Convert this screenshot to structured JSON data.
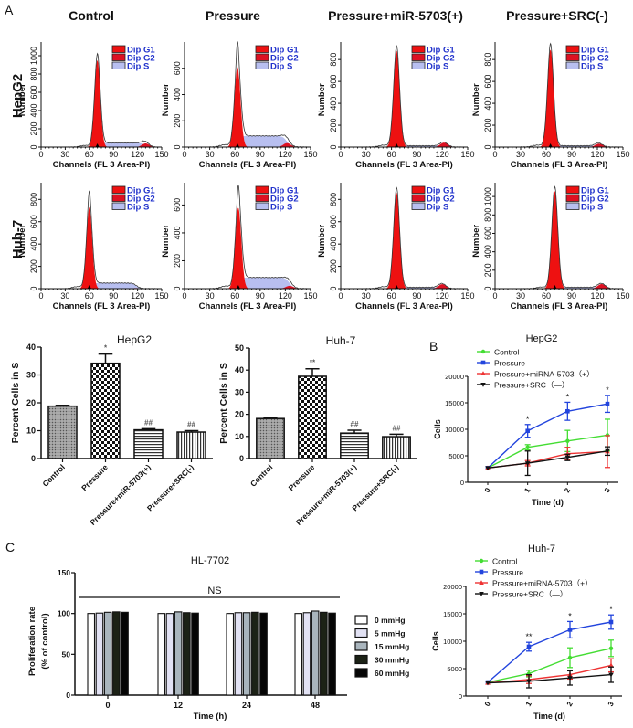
{
  "figure": {
    "panel_labels": [
      "A",
      "B",
      "C"
    ],
    "column_titles": [
      "Control",
      "Pressure",
      "Pressure+miR-5703(+)",
      "Pressure+SRC(-)"
    ],
    "row_labels": [
      "HepG2",
      "Huh-7"
    ]
  },
  "colors": {
    "g1": "#ee1111",
    "g2": "#dd1122",
    "s_phase": "#b8bff0",
    "legend_text": "#2233cc",
    "control": "#44dd33",
    "pressure": "#2244dd",
    "mirna": "#ee3333",
    "src": "#111111"
  },
  "chart_data": [
    {
      "type": "area",
      "row": "HepG2",
      "condition": "Control",
      "xlabel": "Channels (FL 3 Area-PI)",
      "ylabel": "Number",
      "xlim": [
        0,
        150
      ],
      "xticks": [
        0,
        30,
        60,
        90,
        120,
        150
      ],
      "ylim": [
        0,
        1150
      ],
      "yticks": [
        0,
        200,
        400,
        600,
        800,
        1000
      ],
      "legend": [
        "Dip G1",
        "Dip G2",
        "Dip S"
      ],
      "g1_channel": 70,
      "g1_height": 950,
      "peak_height": 1000,
      "g2_channel": 130,
      "g2_height": 40,
      "s_level": 45
    },
    {
      "type": "area",
      "row": "HepG2",
      "condition": "Pressure",
      "xlabel": "Channels (FL 3 Area-PI)",
      "ylabel": "Number",
      "xlim": [
        0,
        150
      ],
      "xticks": [
        0,
        30,
        60,
        90,
        120,
        150
      ],
      "ylim": [
        0,
        800
      ],
      "yticks": [
        0,
        200,
        400,
        600
      ],
      "legend": [
        "Dip G1",
        "Dip G2",
        "Dip S"
      ],
      "g1_channel": 63,
      "g1_height": 610,
      "peak_height": 760,
      "g2_channel": 122,
      "g2_height": 30,
      "s_level": 85
    },
    {
      "type": "area",
      "row": "HepG2",
      "condition": "Pressure+miR-5703(+)",
      "xlabel": "Channels (FL 3 Area-PI)",
      "ylabel": "Number",
      "xlim": [
        0,
        150
      ],
      "xticks": [
        0,
        30,
        60,
        90,
        120,
        150
      ],
      "ylim": [
        0,
        960
      ],
      "yticks": [
        0,
        200,
        400,
        600,
        800
      ],
      "legend": [
        "Dip G1",
        "Dip G2",
        "Dip S"
      ],
      "g1_channel": 66,
      "g1_height": 880,
      "peak_height": 920,
      "g2_channel": 122,
      "g2_height": 40,
      "s_level": 12
    },
    {
      "type": "area",
      "row": "HepG2",
      "condition": "Pressure+SRC(-)",
      "xlabel": "Channels (FL 3 Area-PI)",
      "ylabel": "Number",
      "xlim": [
        0,
        150
      ],
      "xticks": [
        0,
        30,
        60,
        90,
        120,
        150
      ],
      "ylim": [
        0,
        960
      ],
      "yticks": [
        0,
        200,
        400,
        600,
        800
      ],
      "legend": [
        "Dip G1",
        "Dip G2",
        "Dip S"
      ],
      "g1_channel": 65,
      "g1_height": 890,
      "peak_height": 940,
      "g2_channel": 122,
      "g2_height": 30,
      "s_level": 12
    },
    {
      "type": "area",
      "row": "Huh-7",
      "condition": "Control",
      "xlabel": "Channels (FL 3 Area-PI)",
      "ylabel": "Number",
      "xlim": [
        0,
        150
      ],
      "xticks": [
        0,
        30,
        60,
        90,
        120,
        150
      ],
      "ylim": [
        0,
        950
      ],
      "yticks": [
        0,
        200,
        400,
        600,
        800
      ],
      "legend": [
        "Dip G1",
        "Dip G2",
        "Dip S"
      ],
      "g1_channel": 60,
      "g1_height": 730,
      "peak_height": 850,
      "g2_channel": 118,
      "g2_height": 5,
      "s_level": 50
    },
    {
      "type": "area",
      "row": "Huh-7",
      "condition": "Pressure",
      "xlabel": "Channels (FL 3 Area-PI)",
      "ylabel": "Number",
      "xlim": [
        0,
        150
      ],
      "xticks": [
        0,
        30,
        60,
        90,
        120,
        150
      ],
      "ylim": [
        0,
        760
      ],
      "yticks": [
        0,
        200,
        400,
        600
      ],
      "legend": [
        "Dip G1",
        "Dip G2",
        "Dip S"
      ],
      "g1_channel": 64,
      "g1_height": 580,
      "peak_height": 700,
      "g2_channel": 125,
      "g2_height": 20,
      "s_level": 80
    },
    {
      "type": "area",
      "row": "Huh-7",
      "condition": "Pressure+miR-5703(+)",
      "xlabel": "Channels (FL 3 Area-PI)",
      "ylabel": "Number",
      "xlim": [
        0,
        150
      ],
      "xticks": [
        0,
        30,
        60,
        90,
        120,
        150
      ],
      "ylim": [
        0,
        950
      ],
      "yticks": [
        0,
        200,
        400,
        600,
        800
      ],
      "legend": [
        "Dip G1",
        "Dip G2",
        "Dip S"
      ],
      "g1_channel": 66,
      "g1_height": 860,
      "peak_height": 900,
      "g2_channel": 120,
      "g2_height": 40,
      "s_level": 12
    },
    {
      "type": "area",
      "row": "Huh-7",
      "condition": "Pressure+SRC(-)",
      "xlabel": "Channels (FL 3 Area-PI)",
      "ylabel": "Number",
      "xlim": [
        0,
        150
      ],
      "xticks": [
        0,
        30,
        60,
        90,
        120,
        150
      ],
      "ylim": [
        0,
        1150
      ],
      "yticks": [
        0,
        200,
        400,
        600,
        800,
        1000
      ],
      "legend": [
        "Dip G1",
        "Dip G2",
        "Dip S"
      ],
      "g1_channel": 70,
      "g1_height": 1060,
      "peak_height": 1100,
      "g2_channel": 125,
      "g2_height": 50,
      "s_level": 15
    },
    {
      "type": "bar",
      "title": "HepG2",
      "ylabel": "Percent Cells in S",
      "ylim": [
        0,
        40
      ],
      "yticks": [
        0,
        10,
        20,
        30,
        40
      ],
      "categories": [
        "Control",
        "Pressure",
        "Pressure+miR-5703(+)",
        "Pressure+SRC(-)"
      ],
      "values": [
        18.8,
        34.2,
        10.3,
        9.5
      ],
      "errors": [
        0.3,
        3.3,
        0.4,
        0.5
      ],
      "annotations": [
        "",
        "*",
        "##",
        "##"
      ]
    },
    {
      "type": "bar",
      "title": "Huh-7",
      "ylabel": "Percent Cells in S",
      "ylim": [
        0,
        50
      ],
      "yticks": [
        0,
        10,
        20,
        30,
        40,
        50
      ],
      "categories": [
        "Control",
        "Pressure",
        "Pressure+miR-5703(+)",
        "Pressure+SRC(-)"
      ],
      "values": [
        18.1,
        37.2,
        11.5,
        9.9
      ],
      "errors": [
        0.3,
        3.4,
        1.3,
        1.1
      ],
      "annotations": [
        "",
        "**",
        "##",
        "##"
      ]
    },
    {
      "type": "line",
      "title": "HepG2",
      "xlabel": "Time (d)",
      "ylabel": "Cells",
      "x": [
        0,
        1,
        2,
        3
      ],
      "ylim": [
        0,
        20000
      ],
      "yticks": [
        0,
        5000,
        10000,
        15000,
        20000
      ],
      "legend_position": "top-left",
      "series": [
        {
          "name": "Control",
          "values": [
            2700,
            6600,
            7800,
            8900
          ],
          "errors": [
            0,
            500,
            2000,
            3000
          ]
        },
        {
          "name": "Pressure",
          "values": [
            2700,
            9700,
            13400,
            14800
          ],
          "errors": [
            0,
            1200,
            1700,
            1600
          ]
        },
        {
          "name": "Pressure+miRNA-5703（+）",
          "values": [
            2700,
            3600,
            5400,
            5800
          ],
          "errors": [
            0,
            500,
            1200,
            3000
          ]
        },
        {
          "name": "Pressure+SRC（—）",
          "values": [
            2700,
            3600,
            4700,
            5900
          ],
          "errors": [
            0,
            2300,
            600,
            800
          ]
        }
      ],
      "annotations": [
        "",
        "*",
        "*",
        "*"
      ]
    },
    {
      "type": "line",
      "title": "Huh-7",
      "xlabel": "Time (d)",
      "ylabel": "Cells",
      "x": [
        0,
        1,
        2,
        3
      ],
      "ylim": [
        0,
        20000
      ],
      "yticks": [
        0,
        5000,
        10000,
        15000,
        20000
      ],
      "legend_position": "top-left",
      "series": [
        {
          "name": "Control",
          "values": [
            2500,
            4100,
            7000,
            8700
          ],
          "errors": [
            0,
            600,
            1800,
            1500
          ]
        },
        {
          "name": "Pressure",
          "values": [
            2500,
            9000,
            12100,
            13500
          ],
          "errors": [
            0,
            800,
            1500,
            1300
          ]
        },
        {
          "name": "Pressure+miRNA-5703（+）",
          "values": [
            2400,
            3000,
            3900,
            5600
          ],
          "errors": [
            0,
            700,
            800,
            1200
          ]
        },
        {
          "name": "Pressure+SRC（—）",
          "values": [
            2400,
            2700,
            3300,
            3900
          ],
          "errors": [
            0,
            1200,
            1300,
            1400
          ]
        }
      ],
      "annotations": [
        "",
        "**",
        "*",
        "*"
      ]
    },
    {
      "type": "bar",
      "title": "HL-7702",
      "xlabel": "Time (h)",
      "ylabel": "Proliferation rate",
      "ylabel2": "(% of control)",
      "ylim": [
        0,
        150
      ],
      "yticks": [
        0,
        50,
        100,
        150
      ],
      "categories": [
        "0",
        "12",
        "24",
        "48"
      ],
      "legend_position": "right",
      "annotation": "NS",
      "series": [
        {
          "name": "0 mmHg",
          "values": [
            100,
            100,
            100,
            100
          ]
        },
        {
          "name": "5 mmHg",
          "values": [
            100.5,
            100,
            101,
            101
          ]
        },
        {
          "name": "15 mmHg",
          "values": [
            101.5,
            102,
            101,
            103
          ]
        },
        {
          "name": "30 mmHg",
          "values": [
            102,
            101,
            101.5,
            101.5
          ]
        },
        {
          "name": "60 mmHg",
          "values": [
            101.5,
            100.5,
            100.5,
            100.5
          ]
        }
      ],
      "series_colors": [
        "#ffffff",
        "#e2e2f4",
        "#a9b5bd",
        "#1c2216",
        "#050505"
      ]
    }
  ]
}
